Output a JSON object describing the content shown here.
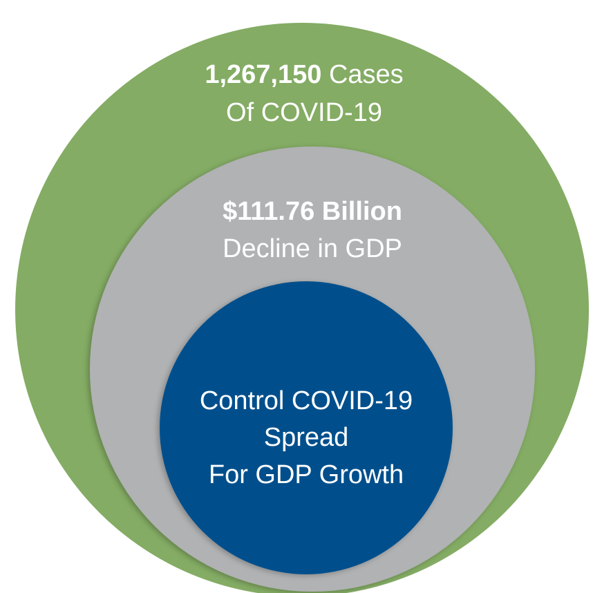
{
  "circles": [
    {
      "highlight": "1,267,150",
      "label": "Cases",
      "subtitle": "Of COVID-19"
    },
    {
      "highlight": "$111.76 Billion",
      "subtitle": "Decline in GDP"
    },
    {
      "lines": [
        "Control COVID-19",
        "Spread",
        "For GDP Growth"
      ]
    }
  ]
}
